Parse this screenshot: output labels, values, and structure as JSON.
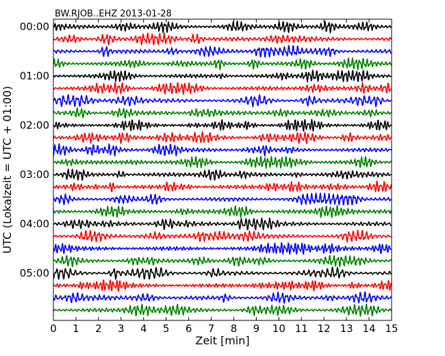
{
  "chart_data": {
    "type": "line",
    "title": "BW.RJOB..EHZ 2013-01-28",
    "xlabel": "Zeit  [min]",
    "ylabel": "UTC (Lokalzeit = UTC + 01:00)",
    "xlim": [
      0,
      15
    ],
    "x_ticks": [
      "0",
      "1",
      "2",
      "3",
      "4",
      "5",
      "6",
      "7",
      "8",
      "9",
      "10",
      "11",
      "12",
      "13",
      "14",
      "15"
    ],
    "y_tick_labels": [
      "00:00",
      "01:00",
      "02:00",
      "03:00",
      "04:00",
      "05:00"
    ],
    "minutes_per_line": 15,
    "line_count": 24,
    "color_cycle": [
      "#000000",
      "#ff0000",
      "#0000ff",
      "#008000"
    ],
    "series": [
      {
        "start": "00:00",
        "color": "#000000"
      },
      {
        "start": "00:15",
        "color": "#ff0000"
      },
      {
        "start": "00:30",
        "color": "#0000ff"
      },
      {
        "start": "00:45",
        "color": "#008000"
      },
      {
        "start": "01:00",
        "color": "#000000"
      },
      {
        "start": "01:15",
        "color": "#ff0000"
      },
      {
        "start": "01:30",
        "color": "#0000ff"
      },
      {
        "start": "01:45",
        "color": "#008000"
      },
      {
        "start": "02:00",
        "color": "#000000"
      },
      {
        "start": "02:15",
        "color": "#ff0000"
      },
      {
        "start": "02:30",
        "color": "#0000ff"
      },
      {
        "start": "02:45",
        "color": "#008000"
      },
      {
        "start": "03:00",
        "color": "#000000"
      },
      {
        "start": "03:15",
        "color": "#ff0000"
      },
      {
        "start": "03:30",
        "color": "#0000ff"
      },
      {
        "start": "03:45",
        "color": "#008000"
      },
      {
        "start": "04:00",
        "color": "#000000"
      },
      {
        "start": "04:15",
        "color": "#ff0000"
      },
      {
        "start": "04:30",
        "color": "#0000ff"
      },
      {
        "start": "04:45",
        "color": "#008000"
      },
      {
        "start": "05:00",
        "color": "#000000"
      },
      {
        "start": "05:15",
        "color": "#ff0000"
      },
      {
        "start": "05:30",
        "color": "#0000ff"
      },
      {
        "start": "05:45",
        "color": "#008000"
      }
    ],
    "grid": false,
    "legend": "none"
  }
}
